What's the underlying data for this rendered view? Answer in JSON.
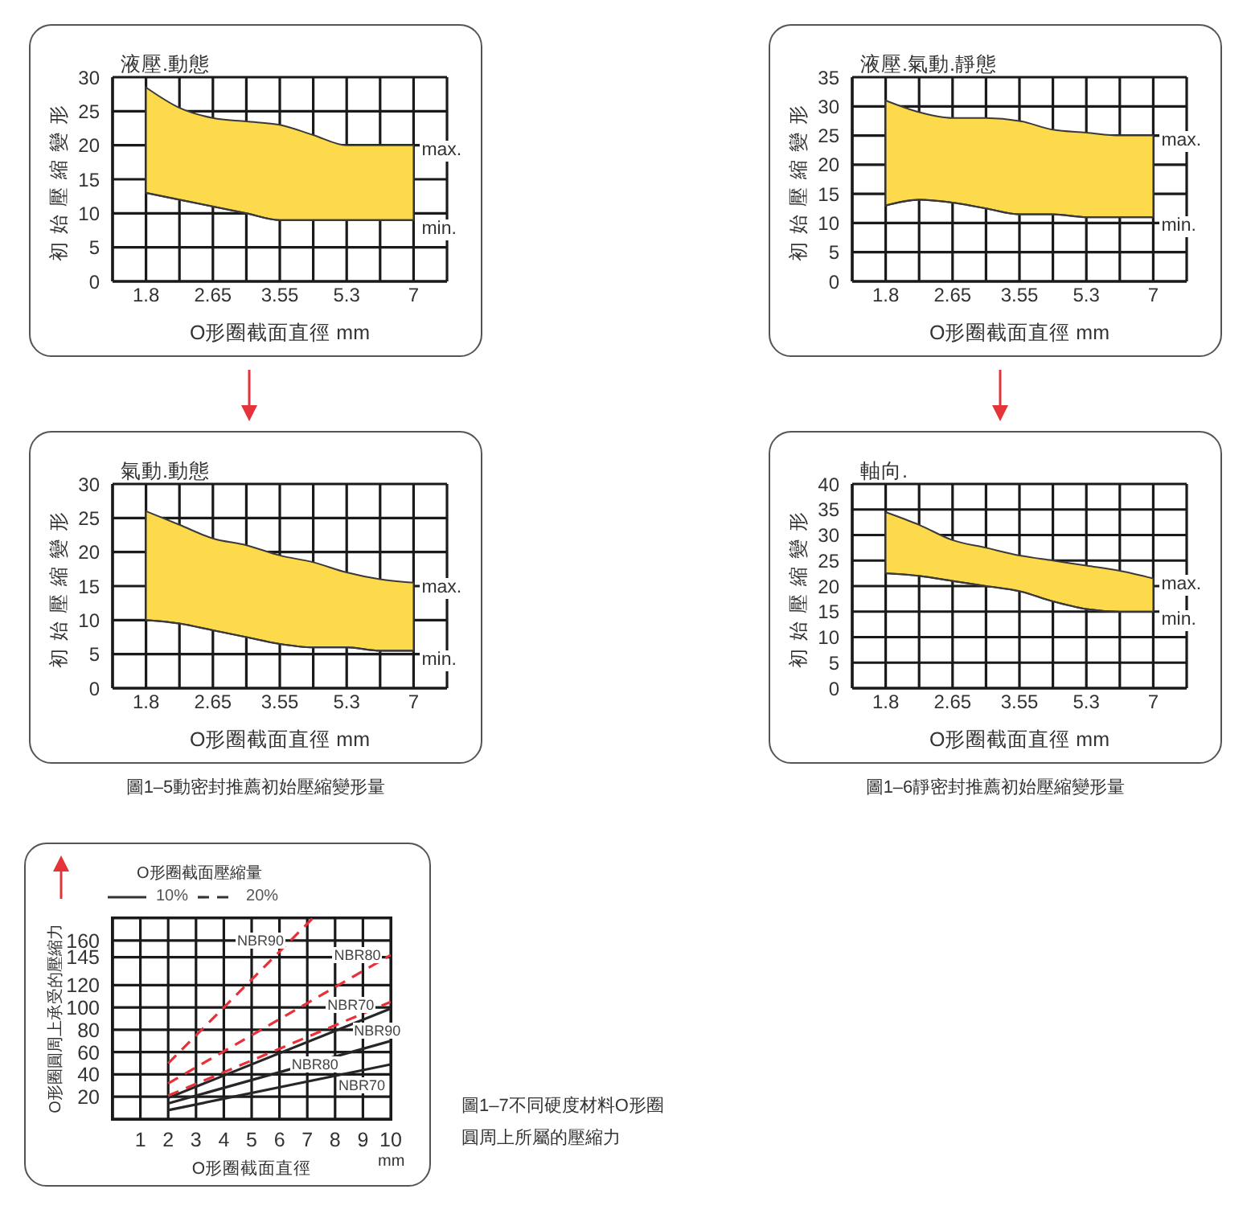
{
  "chart_data": [
    {
      "type": "area",
      "title": "液壓.動態",
      "xlabel": "O形圈截面直徑 mm",
      "ylabel": "初始壓縮變形",
      "categories": [
        null,
        "1.8",
        null,
        "2.65",
        null,
        "3.55",
        null,
        "5.3",
        null,
        "7",
        null
      ],
      "series": [
        {
          "name": "max.",
          "color": "#fdd94c",
          "values": [
            null,
            28.5,
            25.5,
            24,
            23.5,
            23,
            21.5,
            20,
            20,
            20,
            null
          ]
        },
        {
          "name": "min.",
          "type": "line",
          "color": "#3a3a3a",
          "values": [
            null,
            13,
            12,
            11,
            10,
            9,
            9,
            9,
            9,
            9,
            null
          ]
        }
      ],
      "ylim": [
        0,
        30
      ],
      "yticks": [
        0,
        5,
        10,
        15,
        20,
        25,
        30
      ],
      "grid": true
    },
    {
      "type": "area",
      "title": "液壓.氣動.靜態",
      "xlabel": "O形圈截面直徑 mm",
      "ylabel": "初始壓縮變形",
      "categories": [
        null,
        "1.8",
        null,
        "2.65",
        null,
        "3.55",
        null,
        "5.3",
        null,
        "7",
        null
      ],
      "series": [
        {
          "name": "max.",
          "color": "#fdd94c",
          "values": [
            null,
            31,
            29,
            28,
            28,
            27.5,
            26,
            25.5,
            25,
            25,
            null
          ]
        },
        {
          "name": "min.",
          "type": "line",
          "color": "#3a3a3a",
          "values": [
            null,
            13,
            14,
            13.5,
            12.5,
            11.5,
            11.5,
            11,
            11,
            11,
            null
          ]
        }
      ],
      "ylim": [
        0,
        35
      ],
      "yticks": [
        0,
        5,
        10,
        15,
        20,
        25,
        30,
        35
      ],
      "grid": true
    },
    {
      "type": "area",
      "title": "氣動.動態",
      "xlabel": "O形圈截面直徑 mm",
      "ylabel": "初始壓縮變形",
      "categories": [
        null,
        "1.8",
        null,
        "2.65",
        null,
        "3.55",
        null,
        "5.3",
        null,
        "7",
        null
      ],
      "series": [
        {
          "name": "max.",
          "color": "#fdd94c",
          "values": [
            null,
            26,
            24,
            22,
            21,
            19.5,
            18.5,
            17,
            16,
            15.5,
            null
          ]
        },
        {
          "name": "min.",
          "type": "line",
          "color": "#3a3a3a",
          "values": [
            null,
            10,
            9.5,
            8.5,
            7.5,
            6.5,
            6,
            6,
            5.5,
            5.5,
            null
          ]
        }
      ],
      "ylim": [
        0,
        30
      ],
      "yticks": [
        0,
        5,
        10,
        15,
        20,
        25,
        30
      ],
      "grid": true,
      "annotations": [
        "圖1–5動密封推薦初始壓縮變形量"
      ]
    },
    {
      "type": "area",
      "title": "軸向.",
      "xlabel": "O形圈截面直徑 mm",
      "ylabel": "初始壓縮變形",
      "categories": [
        null,
        "1.8",
        null,
        "2.65",
        null,
        "3.55",
        null,
        "5.3",
        null,
        "7",
        null
      ],
      "series": [
        {
          "name": "max.",
          "color": "#fdd94c",
          "values": [
            null,
            34.5,
            32,
            29,
            27.5,
            26,
            25,
            24,
            23,
            21.5,
            null
          ]
        },
        {
          "name": "min.",
          "type": "line",
          "color": "#3a3a3a",
          "values": [
            null,
            22.5,
            22,
            21,
            20,
            19,
            17,
            15.5,
            15,
            15,
            null
          ]
        }
      ],
      "ylim": [
        0,
        40
      ],
      "yticks": [
        0,
        5,
        10,
        15,
        20,
        25,
        30,
        35,
        40
      ],
      "grid": true,
      "annotations": [
        "圖1–6靜密封推薦初始壓縮變形量"
      ]
    },
    {
      "type": "line",
      "xlabel": "O形圈截面直徑",
      "ylabel": "O形圈圓周上承受的壓縮力",
      "legend_title": "O形圈截面壓縮量",
      "series": [
        {
          "name": "NBR90",
          "color": "#262626",
          "line_style": "solid",
          "x": [
            2,
            10
          ],
          "values": [
            19,
            99
          ]
        },
        {
          "name": "NBR80",
          "color": "#262626",
          "line_style": "solid",
          "x": [
            2,
            10
          ],
          "values": [
            14,
            70
          ]
        },
        {
          "name": "NBR70",
          "color": "#262626",
          "line_style": "solid",
          "x": [
            2,
            10
          ],
          "values": [
            8,
            49
          ]
        },
        {
          "name": "NBR90",
          "color": "#e8303a",
          "line_style": "dashed",
          "x": [
            2,
            7.2
          ],
          "values": [
            50,
            180
          ]
        },
        {
          "name": "NBR80",
          "color": "#e8303a",
          "line_style": "dashed",
          "x": [
            2,
            10
          ],
          "values": [
            32,
            147
          ]
        },
        {
          "name": "NBR70",
          "color": "#e8303a",
          "line_style": "dashed",
          "x": [
            2,
            10
          ],
          "values": [
            21,
            105
          ]
        }
      ],
      "xlim": [
        0,
        10
      ],
      "xticks": [
        1,
        2,
        3,
        4,
        5,
        6,
        7,
        8,
        9,
        10
      ],
      "ylim": [
        0,
        180
      ],
      "yticks": [
        20,
        40,
        60,
        80,
        100,
        120,
        145,
        160
      ],
      "grid": true,
      "annotations": [
        "10%",
        "20%",
        "mm",
        "圖1–7不同硬度材料O形圈",
        "圓周上所屬的壓縮力"
      ]
    }
  ]
}
